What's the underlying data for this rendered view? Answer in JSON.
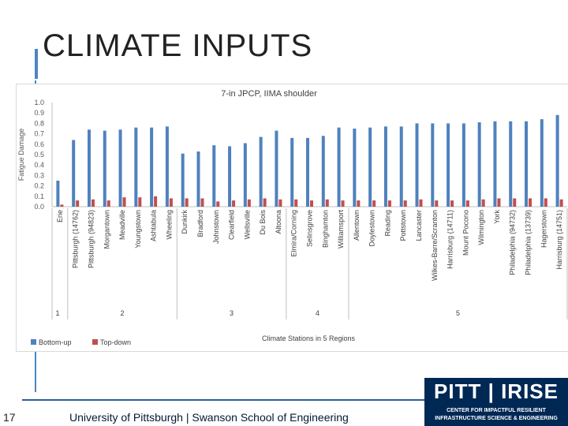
{
  "slide": {
    "title": "CLIMATE INPUTS",
    "page_number": "17",
    "footer": "University of Pittsburgh | Swanson School of Engineering",
    "accent_color": "#4a86c5",
    "footer_rule_color": "#2b5e9c"
  },
  "logo": {
    "text": "PITT | IRISE",
    "line1": "CENTER FOR IMPACTFUL RESILIENT",
    "line2": "INFRASTRUCTURE SCIENCE & ENGINEERING",
    "color": "#002855"
  },
  "chart_data": {
    "type": "bar",
    "title": "7-in JPCP, IIMA shoulder",
    "ylabel": "Fatigue Damage",
    "xlabel": "Climate Stations in 5 Regions",
    "ylim": [
      0,
      1.0
    ],
    "yticks": [
      "0.0",
      "0.1",
      "0.2",
      "0.3",
      "0.4",
      "0.5",
      "0.6",
      "0.7",
      "0.8",
      "0.9",
      "1.0"
    ],
    "grid": false,
    "legend_position": "bottom-left",
    "categories": [
      "Erie",
      "Pittsburgh (14762)",
      "Pittsburgh (94823)",
      "Morgantown",
      "Meadville",
      "Youngstown",
      "Ashtabula",
      "Wheeling",
      "Dunkirk",
      "Bradford",
      "Johnstown",
      "Clearfield",
      "Wellsville",
      "Du Bois",
      "Altoona",
      "Elmira/Corning",
      "Selinsgrove",
      "Binghamton",
      "Williamsport",
      "Allentown",
      "Doylestown",
      "Reading",
      "Pottstown",
      "Lancaster",
      "Wilkes-Barre/Scranton",
      "Harrisburg (14711)",
      "Mount Pocono",
      "Wilmington",
      "York",
      "Philadelphia (94732)",
      "Philadelphia (13739)",
      "Hagerstown",
      "Harrisburg (14751)"
    ],
    "series": [
      {
        "name": "Bottom-up",
        "color": "#4f81bd",
        "values": [
          0.25,
          0.64,
          0.74,
          0.73,
          0.74,
          0.76,
          0.76,
          0.77,
          0.51,
          0.53,
          0.59,
          0.58,
          0.61,
          0.67,
          0.73,
          0.66,
          0.66,
          0.68,
          0.76,
          0.75,
          0.76,
          0.77,
          0.77,
          0.8,
          0.8,
          0.8,
          0.8,
          0.81,
          0.82,
          0.82,
          0.82,
          0.84,
          0.88
        ]
      },
      {
        "name": "Top-down",
        "color": "#c0504d",
        "values": [
          0.02,
          0.06,
          0.07,
          0.06,
          0.09,
          0.09,
          0.1,
          0.08,
          0.08,
          0.08,
          0.05,
          0.06,
          0.07,
          0.08,
          0.07,
          0.07,
          0.06,
          0.07,
          0.06,
          0.06,
          0.06,
          0.06,
          0.06,
          0.07,
          0.06,
          0.06,
          0.06,
          0.07,
          0.08,
          0.08,
          0.08,
          0.08,
          0.07
        ]
      }
    ],
    "regions": [
      {
        "label": "1",
        "start": 0,
        "end": 0
      },
      {
        "label": "2",
        "start": 1,
        "end": 7
      },
      {
        "label": "3",
        "start": 8,
        "end": 14
      },
      {
        "label": "4",
        "start": 15,
        "end": 18
      },
      {
        "label": "5",
        "start": 19,
        "end": 32
      }
    ]
  }
}
